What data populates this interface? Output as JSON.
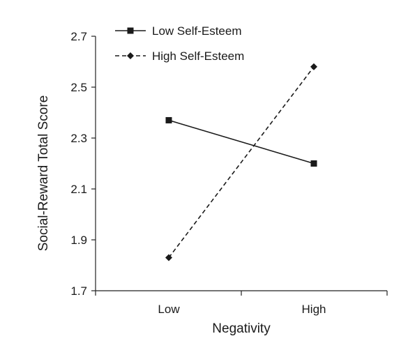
{
  "chart_data": {
    "type": "line",
    "xlabel": "Negativity",
    "ylabel": "Social-Reward Total Score",
    "categories": [
      "Low",
      "High"
    ],
    "ylim": [
      1.7,
      2.7
    ],
    "yticks": [
      1.7,
      1.9,
      2.1,
      2.3,
      2.5,
      2.7
    ],
    "ytick_labels": [
      "1.7",
      "1.9",
      "2.1",
      "2.3",
      "2.5",
      "2.7"
    ],
    "grid": false,
    "legend_position": "top-left",
    "series": [
      {
        "name": "Low Self-Esteem",
        "values": [
          2.37,
          2.2
        ],
        "marker": "square",
        "line_style": "solid",
        "color": "#1a1a1a"
      },
      {
        "name": "High Self-Esteem",
        "values": [
          1.83,
          2.58
        ],
        "marker": "diamond",
        "line_style": "dashed",
        "color": "#1a1a1a"
      }
    ]
  }
}
